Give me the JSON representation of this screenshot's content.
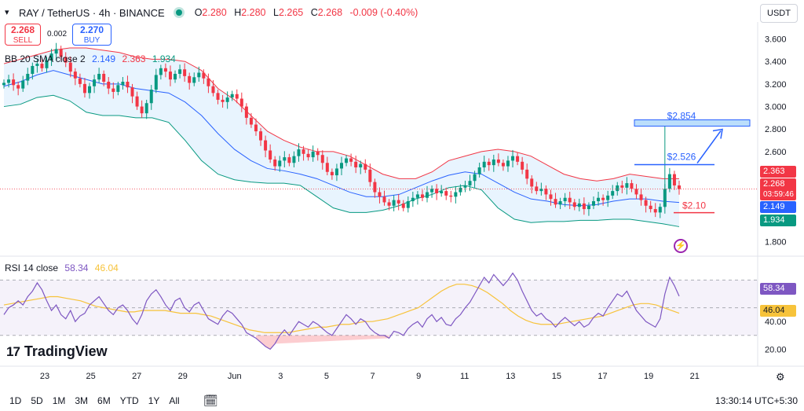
{
  "header": {
    "symbol": "RAY / TetherUS · 4h · BINANCE",
    "open_label": "O",
    "open": "2.280",
    "high_label": "H",
    "high": "2.280",
    "low_label": "L",
    "low": "2.265",
    "close_label": "C",
    "close": "2.268",
    "change": "-0.009 (-0.40%)",
    "currency_button": "USDT",
    "status_color": "#089981"
  },
  "trade": {
    "sell_price": "2.268",
    "sell_label": "SELL",
    "spread": "0.002",
    "buy_price": "2.270",
    "buy_label": "BUY"
  },
  "bb_legend": {
    "name": "BB 20 SMA close 2",
    "basis": "2.149",
    "upper": "2.363",
    "lower": "1.934"
  },
  "rsi_legend": {
    "name": "RSI 14 close",
    "rsi": "58.34",
    "ma": "46.04"
  },
  "price_labels": {
    "upper": "2.363",
    "last": "2.268",
    "countdown": "03:59:46",
    "basis": "2.149",
    "lower": "1.934",
    "rsi": "58.34",
    "rsi_ma": "46.04"
  },
  "annotations": {
    "target_high": "$2.854",
    "target_mid": "$2.526",
    "support": "$2.10"
  },
  "logo": {
    "text": "TradingView"
  },
  "timeframes": [
    "1D",
    "5D",
    "1M",
    "3M",
    "6M",
    "YTD",
    "1Y",
    "All"
  ],
  "clock": "13:30:14 UTC+5:30",
  "colors": {
    "up": "#089981",
    "down": "#f23645",
    "bb_basis": "#2962ff",
    "bb_upper": "#f23645",
    "bb_lower": "#089981",
    "bb_fill": "#2196f3",
    "rsi": "#7e57c2",
    "rsi_ma": "#f7c33b",
    "rsi_band": "#7e57c2",
    "annotation": "#2962ff"
  },
  "chart_data": {
    "type": "candlestick",
    "title": "RAY / TetherUS · 4h · BINANCE",
    "y_ticks": [
      1.8,
      2.0,
      2.2,
      2.4,
      2.6,
      2.8,
      3.0,
      3.2,
      3.4,
      3.6
    ],
    "y_tick_labels": [
      "1.800",
      "2.000",
      "2.200",
      "2.400",
      "2.600",
      "2.800",
      "3.000",
      "3.200",
      "3.400",
      "3.600"
    ],
    "x_ticks": [
      "23",
      "25",
      "27",
      "29",
      "Jun",
      "3",
      "5",
      "7",
      "9",
      "11",
      "13",
      "15",
      "17",
      "19",
      "21"
    ],
    "x_tick_days": [
      0,
      2,
      4,
      6,
      8.25,
      10.25,
      12.25,
      14.25,
      16.25,
      18.25,
      20.25,
      22.25,
      24.25,
      26.25,
      28.25
    ],
    "price_range": [
      1.7,
      3.75
    ],
    "close": [
      3.21,
      3.24,
      3.19,
      3.16,
      3.23,
      3.29,
      3.36,
      3.38,
      3.34,
      3.41,
      3.47,
      3.51,
      3.44,
      3.39,
      3.31,
      3.25,
      3.2,
      3.12,
      3.18,
      3.24,
      3.29,
      3.22,
      3.16,
      3.13,
      3.19,
      3.22,
      3.17,
      3.09,
      3.0,
      2.94,
      3.03,
      3.15,
      3.28,
      3.34,
      3.31,
      3.24,
      3.29,
      3.33,
      3.27,
      3.21,
      3.26,
      3.3,
      3.25,
      3.18,
      3.12,
      3.06,
      3.04,
      3.08,
      3.11,
      3.07,
      3.0,
      2.9,
      2.84,
      2.78,
      2.7,
      2.61,
      2.53,
      2.47,
      2.52,
      2.55,
      2.5,
      2.56,
      2.62,
      2.58,
      2.55,
      2.6,
      2.57,
      2.5,
      2.42,
      2.39,
      2.45,
      2.5,
      2.54,
      2.51,
      2.46,
      2.49,
      2.44,
      2.33,
      2.24,
      2.2,
      2.15,
      2.12,
      2.17,
      2.14,
      2.1,
      2.16,
      2.19,
      2.22,
      2.19,
      2.24,
      2.27,
      2.23,
      2.25,
      2.21,
      2.2,
      2.24,
      2.28,
      2.3,
      2.34,
      2.4,
      2.46,
      2.51,
      2.48,
      2.53,
      2.5,
      2.47,
      2.52,
      2.56,
      2.51,
      2.44,
      2.36,
      2.29,
      2.25,
      2.27,
      2.22,
      2.18,
      2.13,
      2.16,
      2.19,
      2.15,
      2.11,
      2.14,
      2.09,
      2.12,
      2.16,
      2.19,
      2.17,
      2.21,
      2.25,
      2.3,
      2.28,
      2.32,
      2.27,
      2.22,
      2.17,
      2.12,
      2.09,
      2.06,
      2.11,
      2.27,
      2.4,
      2.3,
      2.268
    ],
    "bb_upper": [
      3.38,
      3.42,
      3.46,
      3.5,
      3.52,
      3.52,
      3.5,
      3.48,
      3.44,
      3.42,
      3.42,
      3.4,
      3.32,
      3.16,
      3.06,
      2.92,
      2.78,
      2.7,
      2.64,
      2.6,
      2.6,
      2.56,
      2.48,
      2.4,
      2.36,
      2.36,
      2.42,
      2.52,
      2.56,
      2.6,
      2.62,
      2.6,
      2.56,
      2.48,
      2.4,
      2.36,
      2.34,
      2.36,
      2.4,
      2.38,
      2.36,
      2.36
    ],
    "bb_basis": [
      3.18,
      3.22,
      3.28,
      3.32,
      3.28,
      3.24,
      3.2,
      3.2,
      3.16,
      3.14,
      3.12,
      3.04,
      2.92,
      2.76,
      2.62,
      2.52,
      2.45,
      2.43,
      2.4,
      2.36,
      2.3,
      2.24,
      2.2,
      2.2,
      2.22,
      2.28,
      2.34,
      2.39,
      2.42,
      2.4,
      2.32,
      2.24,
      2.18,
      2.16,
      2.13,
      2.12,
      2.13,
      2.16,
      2.18,
      2.18,
      2.16,
      2.149
    ],
    "bb_lower": [
      3.0,
      3.02,
      3.08,
      3.1,
      3.05,
      2.95,
      2.92,
      2.92,
      2.9,
      2.9,
      2.86,
      2.7,
      2.52,
      2.4,
      2.35,
      2.33,
      2.32,
      2.32,
      2.3,
      2.2,
      2.1,
      2.06,
      2.06,
      2.08,
      2.12,
      2.18,
      2.22,
      2.28,
      2.3,
      2.26,
      2.1,
      2.0,
      1.97,
      1.98,
      1.98,
      1.99,
      1.99,
      2.0,
      2.0,
      1.98,
      1.96,
      1.934
    ],
    "annotations": [
      {
        "label": "$2.854",
        "value": 2.854
      },
      {
        "label": "$2.526",
        "value": 2.526
      },
      {
        "label": "$2.10",
        "value": 2.1
      }
    ],
    "rsi_ticks": [
      20,
      40
    ],
    "rsi_range": [
      10,
      85
    ],
    "rsi_bands": [
      30,
      50,
      70
    ],
    "rsi": [
      45,
      50,
      52,
      55,
      52,
      58,
      62,
      68,
      63,
      55,
      48,
      52,
      45,
      42,
      48,
      40,
      44,
      46,
      52,
      55,
      58,
      53,
      48,
      45,
      50,
      52,
      48,
      42,
      38,
      45,
      55,
      60,
      63,
      58,
      52,
      48,
      55,
      57,
      50,
      47,
      52,
      54,
      48,
      42,
      40,
      38,
      44,
      48,
      46,
      42,
      38,
      32,
      30,
      28,
      25,
      22,
      20,
      24,
      30,
      34,
      30,
      35,
      40,
      38,
      36,
      40,
      38,
      35,
      32,
      30,
      35,
      40,
      45,
      42,
      38,
      42,
      40,
      35,
      32,
      30,
      30,
      28,
      33,
      32,
      30,
      35,
      38,
      40,
      36,
      42,
      45,
      40,
      43,
      38,
      37,
      42,
      45,
      50,
      54,
      60,
      66,
      72,
      68,
      74,
      70,
      66,
      70,
      75,
      70,
      62,
      55,
      48,
      44,
      46,
      42,
      40,
      36,
      40,
      43,
      40,
      37,
      40,
      36,
      38,
      43,
      46,
      44,
      50,
      55,
      60,
      58,
      62,
      55,
      48,
      44,
      40,
      38,
      36,
      42,
      60,
      72,
      66,
      58.34
    ],
    "rsi_ma": [
      52,
      53,
      54,
      55,
      56,
      57,
      58,
      58,
      57,
      56,
      55,
      53,
      51,
      50,
      49,
      48,
      47,
      47,
      48,
      48,
      48,
      48,
      47,
      46,
      46,
      46,
      45,
      44,
      42,
      40,
      38,
      36,
      34,
      33,
      32,
      32,
      32,
      32,
      33,
      34,
      35,
      36,
      36,
      37,
      38,
      38,
      39,
      40,
      40,
      41,
      42,
      44,
      46,
      48,
      50,
      54,
      58,
      62,
      65,
      67,
      67,
      66,
      64,
      61,
      57,
      53,
      48,
      44,
      41,
      39,
      38,
      38,
      38,
      39,
      40,
      41,
      42,
      43,
      44,
      46,
      48,
      50,
      52,
      53,
      53,
      52,
      50,
      48,
      46.04
    ]
  }
}
